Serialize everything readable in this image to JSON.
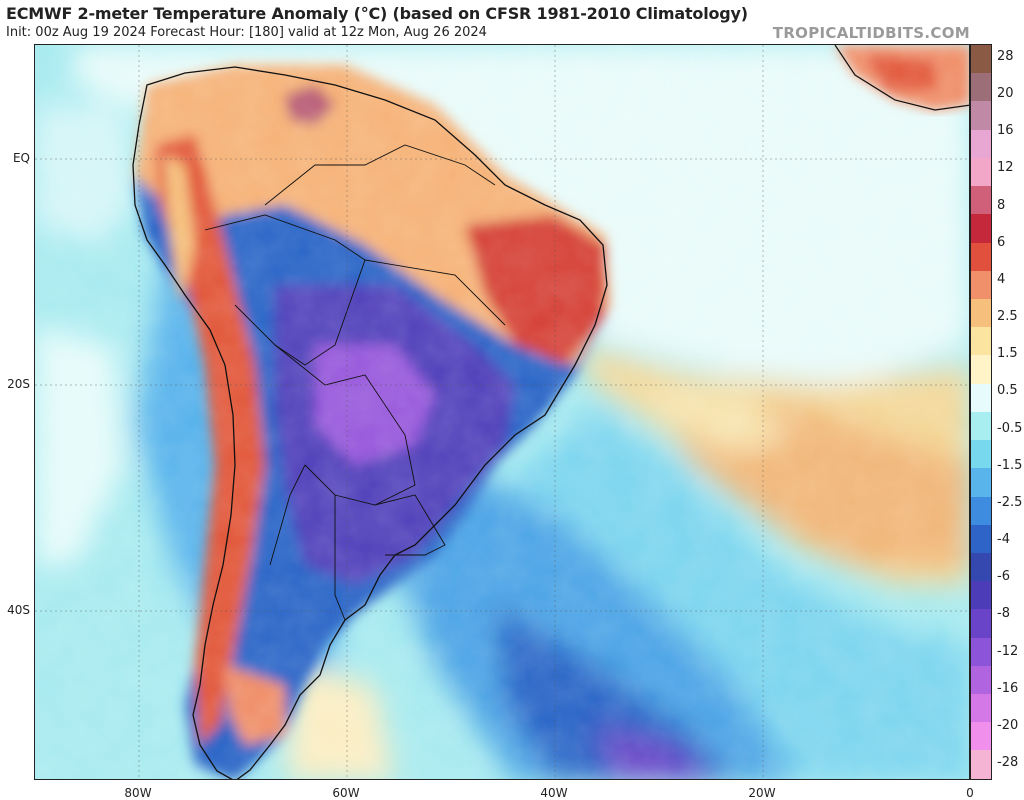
{
  "header": {
    "title": "ECMWF 2-meter Temperature Anomaly (°C) (based on CFSR 1981-2010 Climatology)",
    "subtitle": "Init: 00z Aug 19 2024   Forecast Hour: [180]   valid at 12z Mon, Aug 26 2024",
    "brand": "TROPICALTIDBITS.COM"
  },
  "map": {
    "lat_labels": [
      "EQ",
      "20S",
      "40S"
    ],
    "lon_labels": [
      "80W",
      "60W",
      "40W",
      "20W",
      "0"
    ]
  },
  "colorbar": {
    "labels": [
      "28",
      "20",
      "16",
      "12",
      "8",
      "6",
      "4",
      "2.5",
      "1.5",
      "0.5",
      "-0.5",
      "-1.5",
      "-2.5",
      "-4",
      "-6",
      "-8",
      "-12",
      "-16",
      "-20",
      "-28"
    ],
    "colors": [
      "#8a5a44",
      "#9b6e78",
      "#c08aa6",
      "#e8a6d2",
      "#f2a6c8",
      "#d0607a",
      "#c4283a",
      "#e0503c",
      "#f0906a",
      "#f6c07c",
      "#fbe3a0",
      "#fff4c8",
      "#e8fbfc",
      "#a8eef0",
      "#78d8ee",
      "#5ab4ec",
      "#3e8ce0",
      "#2e64c8",
      "#3448b0",
      "#4c3cb8",
      "#6a44c8",
      "#8c54d8",
      "#b064e0",
      "#d478e8",
      "#f090ec",
      "#f6b4d4"
    ]
  }
}
